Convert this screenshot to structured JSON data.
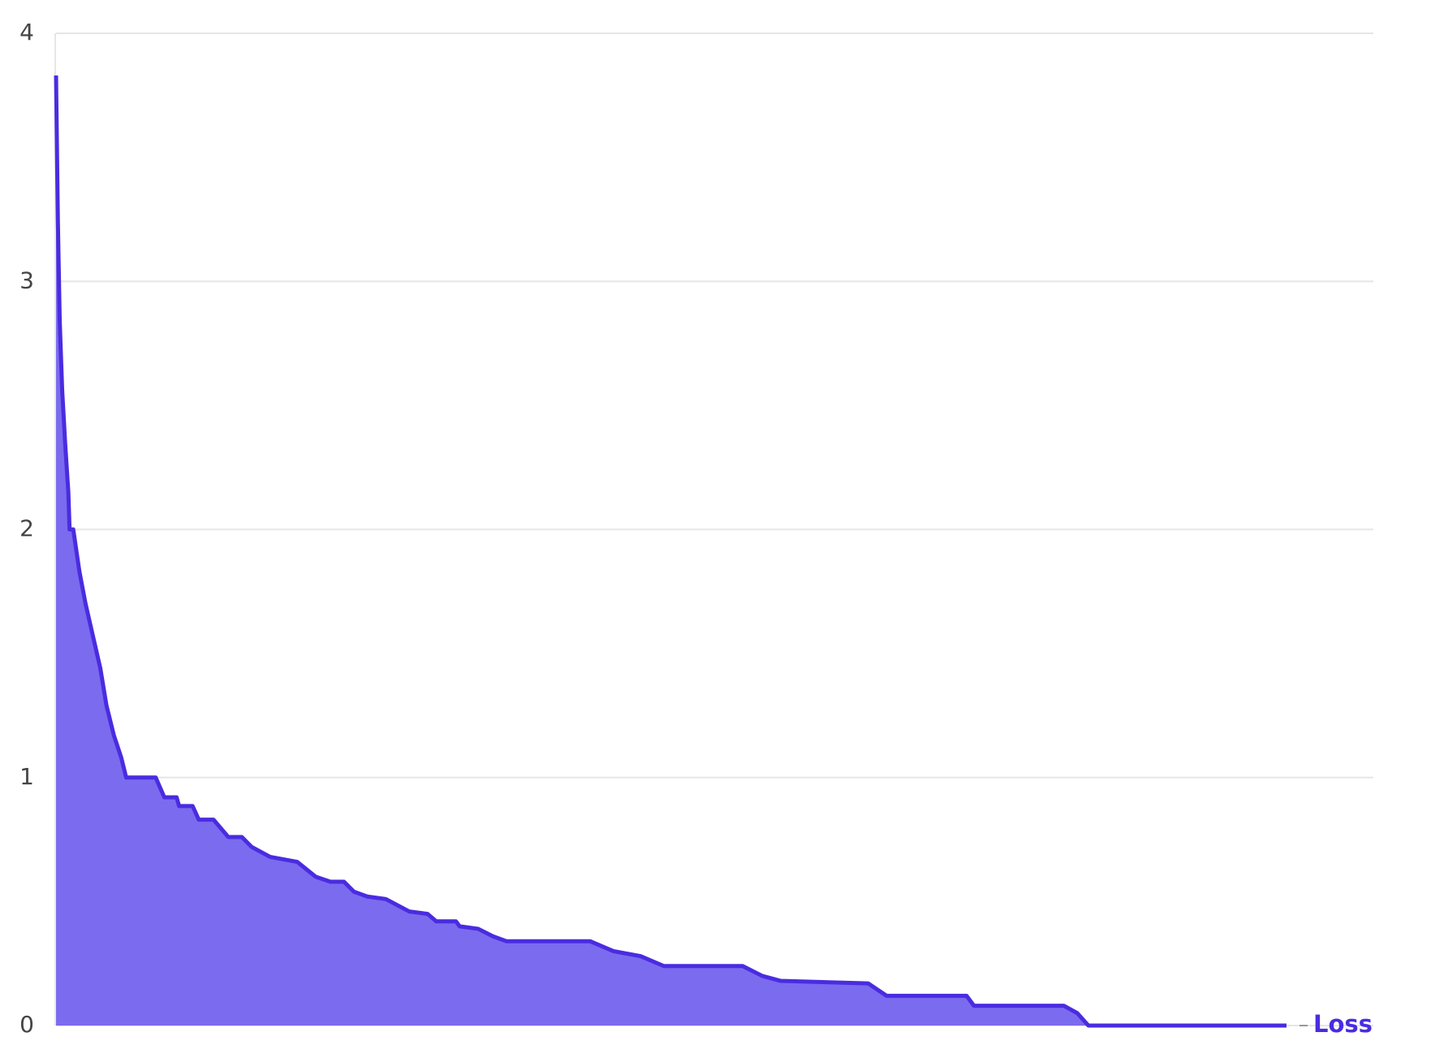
{
  "chart_data": {
    "type": "area",
    "x": [
      0,
      1.5,
      3,
      5,
      7.5,
      10,
      11,
      14,
      19,
      24,
      30,
      36,
      41,
      47,
      53,
      57,
      81,
      88,
      98,
      100,
      111,
      116,
      128,
      140,
      151,
      159,
      174,
      196,
      211,
      223,
      234,
      242,
      253,
      268,
      287,
      302,
      309,
      325,
      328,
      343,
      355,
      366,
      434,
      453,
      475,
      494,
      558,
      574,
      589,
      660,
      675,
      740,
      746,
      819,
      830,
      839,
      1000
    ],
    "series": [
      {
        "name": "Loss",
        "color": "#4a2ce0",
        "values": [
          3.83,
          3.24,
          2.84,
          2.56,
          2.34,
          2.15,
          2.0,
          2.0,
          1.83,
          1.7,
          1.57,
          1.44,
          1.29,
          1.17,
          1.08,
          1.0,
          1.0,
          0.92,
          0.92,
          0.885,
          0.885,
          0.83,
          0.83,
          0.76,
          0.76,
          0.72,
          0.68,
          0.66,
          0.6,
          0.58,
          0.58,
          0.54,
          0.52,
          0.51,
          0.46,
          0.45,
          0.42,
          0.42,
          0.4,
          0.39,
          0.36,
          0.34,
          0.34,
          0.3,
          0.28,
          0.24,
          0.24,
          0.2,
          0.18,
          0.17,
          0.12,
          0.12,
          0.08,
          0.08,
          0.05,
          0.0,
          0.0
        ]
      }
    ],
    "xlim": [
      0,
      1000
    ],
    "ylim": [
      0,
      4
    ],
    "yticks": [
      0,
      1,
      2,
      3,
      4
    ],
    "grid": true,
    "fill_color": "#7b6bef"
  }
}
